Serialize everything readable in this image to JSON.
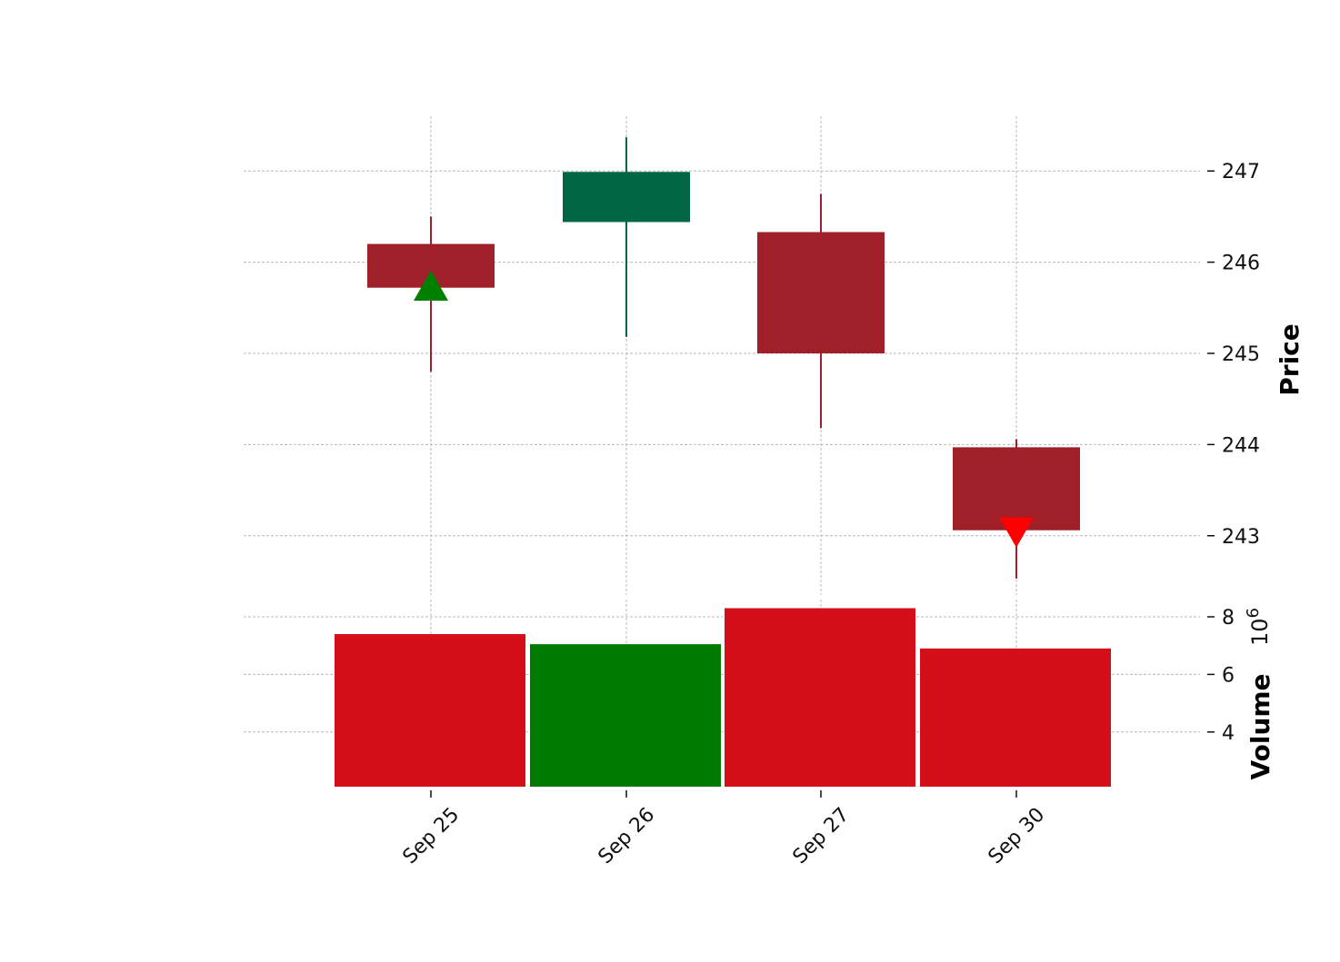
{
  "chart_data": {
    "type": "candlestick",
    "x": [
      "Sep 25",
      "Sep 26",
      "Sep 27",
      "Sep 30"
    ],
    "candles": [
      {
        "date": "Sep 25",
        "open": 246.2,
        "high": 246.5,
        "low": 244.8,
        "close": 245.72
      },
      {
        "date": "Sep 26",
        "open": 246.44,
        "high": 247.37,
        "low": 245.18,
        "close": 246.99
      },
      {
        "date": "Sep 27",
        "open": 246.33,
        "high": 246.75,
        "low": 244.18,
        "close": 245.0
      },
      {
        "date": "Sep 30",
        "open": 243.97,
        "high": 244.06,
        "low": 242.53,
        "close": 243.06
      }
    ],
    "volume": [
      7.4,
      7.05,
      8.3,
      6.9
    ],
    "volume_colors": [
      "#d40f1a",
      "#007a00",
      "#d40f1a",
      "#d40f1a"
    ],
    "markers": [
      {
        "date": "Sep 25",
        "value": 245.72,
        "shape": "triangle-up",
        "color": "#008000"
      },
      {
        "date": "Sep 30",
        "value": 243.06,
        "shape": "triangle-down",
        "color": "#ff0000"
      }
    ],
    "price_axis": {
      "label": "Price",
      "ticks": [
        "243",
        "244",
        "245",
        "246",
        "247"
      ],
      "ylim": [
        242.35,
        247.6
      ]
    },
    "volume_axis": {
      "label": "Volume",
      "exponent": "10",
      "exponent_power": "6",
      "ticks": [
        "4",
        "6",
        "8"
      ],
      "ylim": [
        2.1,
        8.6
      ]
    },
    "colors": {
      "up": "#006644",
      "down": "#a0202a",
      "grid": "#b8b8b8"
    },
    "grid": true,
    "axis_side": "right"
  }
}
